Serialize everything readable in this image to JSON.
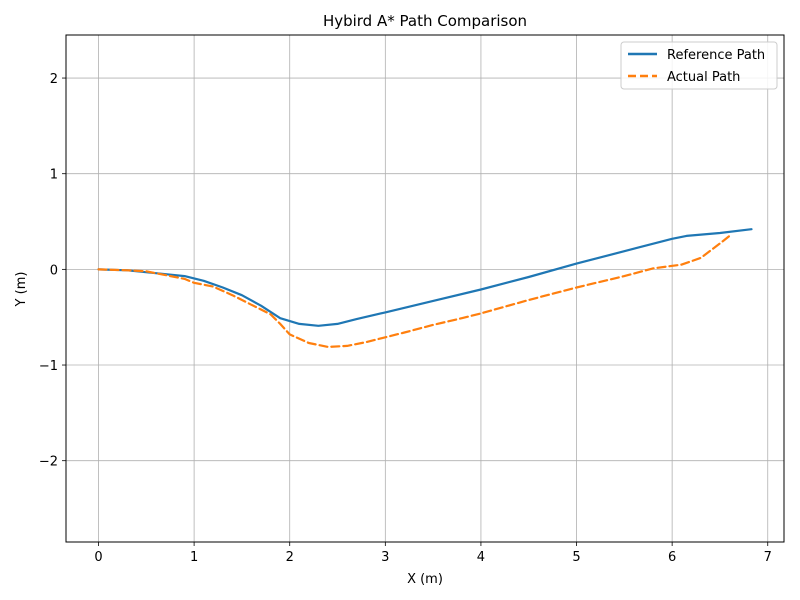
{
  "chart_data": {
    "type": "line",
    "title": "Hybird A* Path Comparison",
    "xlabel": "X (m)",
    "ylabel": "Y (m)",
    "xlim": [
      -0.34,
      7.17
    ],
    "ylim": [
      -2.85,
      2.45
    ],
    "xticks": [
      0,
      1,
      2,
      3,
      4,
      5,
      6,
      7
    ],
    "yticks": [
      -2,
      -1,
      0,
      1,
      2
    ],
    "xtick_labels": [
      "0",
      "1",
      "2",
      "3",
      "4",
      "5",
      "6",
      "7"
    ],
    "ytick_labels": [
      "−2",
      "−1",
      "0",
      "1",
      "2"
    ],
    "grid": true,
    "legend_position": "top-right",
    "series": [
      {
        "name": "Reference Path",
        "color": "#1f77b4",
        "style": "solid",
        "x": [
          0,
          0.3,
          0.6,
          0.9,
          1.1,
          1.3,
          1.5,
          1.7,
          1.9,
          2.1,
          2.3,
          2.5,
          2.7,
          3.0,
          3.5,
          4.0,
          4.5,
          5.0,
          5.5,
          6.0,
          6.15,
          6.5,
          6.83
        ],
        "y": [
          0,
          -0.01,
          -0.04,
          -0.07,
          -0.12,
          -0.19,
          -0.27,
          -0.38,
          -0.51,
          -0.57,
          -0.59,
          -0.57,
          -0.52,
          -0.45,
          -0.33,
          -0.21,
          -0.08,
          0.06,
          0.19,
          0.32,
          0.35,
          0.38,
          0.42
        ]
      },
      {
        "name": "Actual Path",
        "color": "#ff7f0e",
        "style": "dashed",
        "x": [
          0,
          0.3,
          0.5,
          0.7,
          0.9,
          1.0,
          1.2,
          1.4,
          1.6,
          1.8,
          1.9,
          2.0,
          2.2,
          2.4,
          2.6,
          2.8,
          3.0,
          3.2,
          3.5,
          3.8,
          4.0,
          4.5,
          5.0,
          5.5,
          5.8,
          6.1,
          6.3,
          6.5,
          6.6
        ],
        "y": [
          0,
          -0.01,
          -0.02,
          -0.06,
          -0.1,
          -0.14,
          -0.18,
          -0.27,
          -0.37,
          -0.47,
          -0.57,
          -0.68,
          -0.77,
          -0.81,
          -0.8,
          -0.76,
          -0.71,
          -0.66,
          -0.58,
          -0.51,
          -0.46,
          -0.32,
          -0.19,
          -0.07,
          0.01,
          0.05,
          0.12,
          0.27,
          0.35
        ]
      }
    ]
  }
}
